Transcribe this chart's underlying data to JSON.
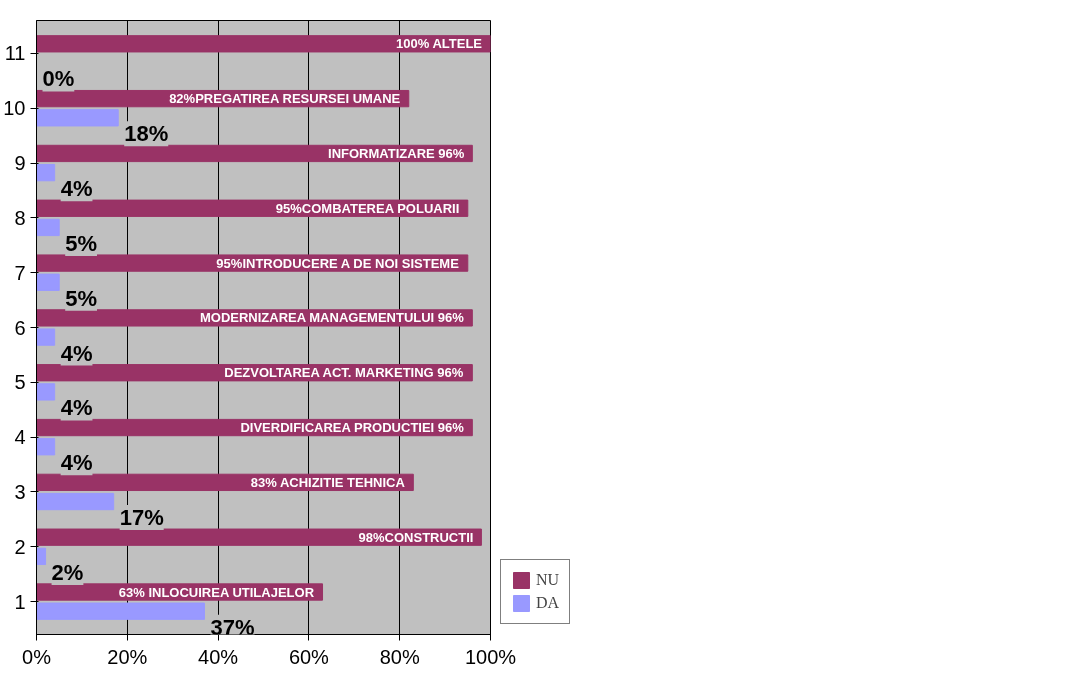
{
  "chart_data": {
    "type": "bar",
    "orientation": "horizontal",
    "categories": [
      "11",
      "10",
      "9",
      "8",
      "7",
      "6",
      "5",
      "4",
      "3",
      "2",
      "1"
    ],
    "series": [
      {
        "name": "NU",
        "color": "#993366",
        "values": [
          100,
          82,
          96,
          95,
          95,
          96,
          96,
          96,
          83,
          98,
          63
        ],
        "value_labels": [
          "100% ALTELE",
          "82%PREGATIREA RESURSEI UMANE",
          "INFORMATIZARE 96%",
          "95%COMBATEREA POLUARII",
          "95%INTRODUCERE A DE NOI SISTEME",
          "MODERNIZAREA MANAGEMENTULUI 96%",
          "DEZVOLTAREA ACT. MARKETING 96%",
          "DIVERDIFICAREA PRODUCTIEI 96%",
          "83% ACHIZITIE TEHNICA",
          "98%CONSTRUCTII",
          "63% INLOCUIREA UTILAJELOR"
        ]
      },
      {
        "name": "DA",
        "color": "#9999ff",
        "values": [
          0,
          18,
          4,
          5,
          5,
          4,
          4,
          4,
          17,
          2,
          37
        ],
        "value_labels": [
          "0%",
          "18%",
          "4%",
          "5%",
          "5%",
          "4%",
          "4%",
          "4%",
          "17%",
          "2%",
          "37%"
        ]
      }
    ],
    "xlim": [
      0,
      100
    ],
    "xticks": [
      {
        "value": 0,
        "label": "0%"
      },
      {
        "value": 20,
        "label": "20%"
      },
      {
        "value": 40,
        "label": "40%"
      },
      {
        "value": 60,
        "label": "60%"
      },
      {
        "value": 80,
        "label": "80%"
      },
      {
        "value": 100,
        "label": "100%"
      }
    ],
    "grid": "x",
    "legend": "right"
  }
}
